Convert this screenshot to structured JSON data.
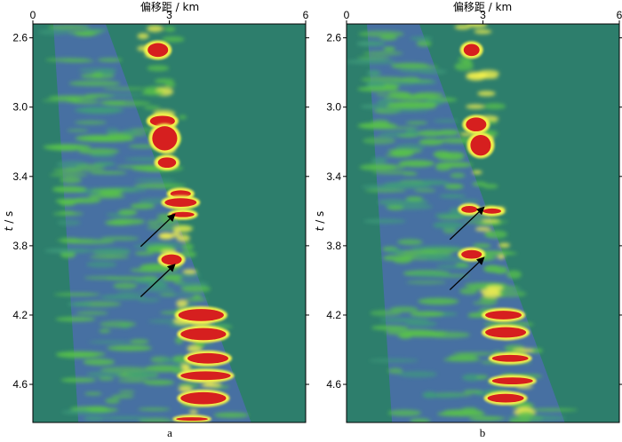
{
  "chart_data": [
    {
      "type": "heatmap",
      "panel_label": "a",
      "xlabel": "偏移距 / km",
      "ylabel_italic": "t",
      "ylabel_unit": " / s",
      "xlim": [
        0,
        6
      ],
      "ylim": [
        2.52,
        4.82
      ],
      "x_ticks": [
        "0",
        "3",
        "6"
      ],
      "y_ticks": [
        "2.6",
        "3.0",
        "3.4",
        "3.8",
        "4.2",
        "4.6"
      ],
      "colors": {
        "background": "#2d7e6c",
        "low": "#4a6fa8",
        "mid": "#58c24a",
        "high": "#f4f24c",
        "peak": "#d61f1f"
      },
      "strong_events": [
        {
          "t": 2.67,
          "offset": 2.75,
          "t_span": 0.08,
          "width": 0.45
        },
        {
          "t": 3.08,
          "offset": 2.85,
          "t_span": 0.06,
          "width": 0.55
        },
        {
          "t": 3.18,
          "offset": 2.9,
          "t_span": 0.14,
          "width": 0.55
        },
        {
          "t": 3.32,
          "offset": 2.95,
          "t_span": 0.06,
          "width": 0.4
        },
        {
          "t": 3.5,
          "offset": 3.25,
          "t_span": 0.04,
          "width": 0.45
        },
        {
          "t": 3.55,
          "offset": 3.25,
          "t_span": 0.05,
          "width": 0.7
        },
        {
          "t": 3.62,
          "offset": 3.3,
          "t_span": 0.03,
          "width": 0.5
        },
        {
          "t": 3.88,
          "offset": 3.05,
          "t_span": 0.06,
          "width": 0.45
        },
        {
          "t": 4.2,
          "offset": 3.7,
          "t_span": 0.07,
          "width": 1.0
        },
        {
          "t": 4.31,
          "offset": 3.75,
          "t_span": 0.07,
          "width": 1.0
        },
        {
          "t": 4.45,
          "offset": 3.85,
          "t_span": 0.06,
          "width": 0.9
        },
        {
          "t": 4.55,
          "offset": 3.8,
          "t_span": 0.05,
          "width": 1.1
        },
        {
          "t": 4.68,
          "offset": 3.75,
          "t_span": 0.07,
          "width": 1.0
        },
        {
          "t": 4.8,
          "offset": 3.5,
          "t_span": 0.02,
          "width": 0.7
        }
      ],
      "arrows": [
        {
          "t": 3.62,
          "offset": 2.45
        },
        {
          "t": 3.91,
          "offset": 2.45
        }
      ]
    },
    {
      "type": "heatmap",
      "panel_label": "b",
      "xlabel": "偏移距 / km",
      "ylabel_italic": "t",
      "ylabel_unit": " / s",
      "xlim": [
        0,
        6
      ],
      "ylim": [
        2.52,
        4.82
      ],
      "x_ticks": [
        "0",
        "3",
        "6"
      ],
      "y_ticks": [
        "2.6",
        "3.0",
        "3.4",
        "3.8",
        "4.2",
        "4.6"
      ],
      "colors": {
        "background": "#2d7e6c",
        "low": "#4a6fa8",
        "mid": "#58c24a",
        "high": "#f4f24c",
        "peak": "#d61f1f"
      },
      "strong_events": [
        {
          "t": 2.67,
          "offset": 2.75,
          "t_span": 0.07,
          "width": 0.35
        },
        {
          "t": 3.1,
          "offset": 2.85,
          "t_span": 0.08,
          "width": 0.45
        },
        {
          "t": 3.22,
          "offset": 2.95,
          "t_span": 0.12,
          "width": 0.45
        },
        {
          "t": 3.59,
          "offset": 2.7,
          "t_span": 0.04,
          "width": 0.35
        },
        {
          "t": 3.6,
          "offset": 3.2,
          "t_span": 0.03,
          "width": 0.4
        },
        {
          "t": 3.85,
          "offset": 2.75,
          "t_span": 0.05,
          "width": 0.45
        },
        {
          "t": 4.2,
          "offset": 3.45,
          "t_span": 0.05,
          "width": 0.8
        },
        {
          "t": 4.3,
          "offset": 3.5,
          "t_span": 0.06,
          "width": 0.9
        },
        {
          "t": 4.45,
          "offset": 3.6,
          "t_span": 0.04,
          "width": 0.8
        },
        {
          "t": 4.58,
          "offset": 3.65,
          "t_span": 0.04,
          "width": 0.9
        },
        {
          "t": 4.68,
          "offset": 3.5,
          "t_span": 0.05,
          "width": 0.8
        }
      ],
      "arrows": [
        {
          "t": 3.58,
          "offset": 2.35
        },
        {
          "t": 3.87,
          "offset": 2.35
        }
      ]
    }
  ]
}
